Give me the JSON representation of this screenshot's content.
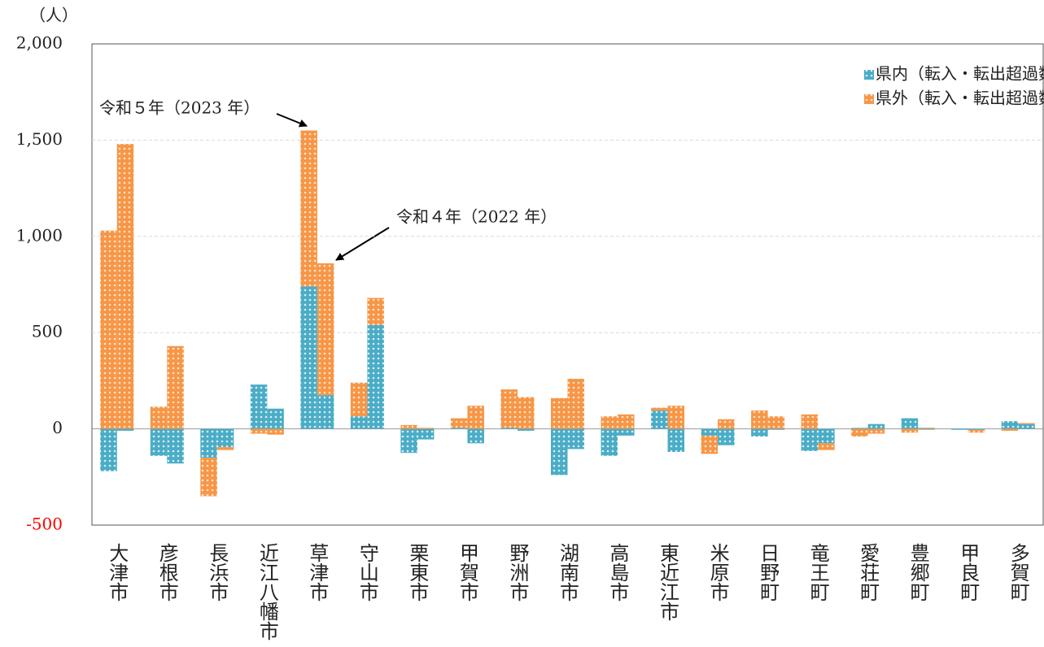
{
  "chart_data": {
    "type": "bar",
    "stacked": true,
    "y_label": "（人）",
    "categories": [
      "大津市",
      "彦根市",
      "長浜市",
      "近江八幡市",
      "草津市",
      "守山市",
      "栗東市",
      "甲賀市",
      "野洲市",
      "湖南市",
      "高島市",
      "東近江市",
      "米原市",
      "日野町",
      "竜王町",
      "愛荘町",
      "豊郷町",
      "甲良町",
      "多賀町"
    ],
    "series": [
      {
        "name": "県内（転入・転出超過数）",
        "color": "#4bacc6",
        "values": [
          [
            -220,
            -10
          ],
          [
            -140,
            -180
          ],
          [
            -150,
            -95
          ],
          [
            230,
            105
          ],
          [
            740,
            175
          ],
          [
            65,
            540
          ],
          [
            -125,
            -55
          ],
          [
            5,
            -75
          ],
          [
            5,
            -10
          ],
          [
            -240,
            -105
          ],
          [
            -140,
            -35
          ],
          [
            95,
            -120
          ],
          [
            -35,
            -85
          ],
          [
            -40,
            -5
          ],
          [
            -115,
            -75
          ],
          [
            5,
            25
          ],
          [
            55,
            5
          ],
          [
            -5,
            -5
          ],
          [
            40,
            25
          ]
        ]
      },
      {
        "name": "県外（転入・転出超過数）",
        "color": "#f79646",
        "values": [
          [
            1030,
            1480
          ],
          [
            115,
            430
          ],
          [
            -200,
            -15
          ],
          [
            -25,
            -30
          ],
          [
            810,
            685
          ],
          [
            175,
            140
          ],
          [
            20,
            5
          ],
          [
            50,
            120
          ],
          [
            200,
            165
          ],
          [
            160,
            260
          ],
          [
            65,
            75
          ],
          [
            15,
            120
          ],
          [
            -95,
            50
          ],
          [
            95,
            65
          ],
          [
            75,
            -35
          ],
          [
            -40,
            -25
          ],
          [
            -20,
            -5
          ],
          [
            0,
            -15
          ],
          [
            -10,
            5
          ]
        ]
      }
    ],
    "annotations": [
      "令和５年（2023 年）",
      "令和４年（2022 年）"
    ],
    "ylim": [
      -500,
      2000
    ],
    "yticks": [
      -500,
      0,
      500,
      {
        "value": 1000,
        "label": "1,000"
      },
      {
        "value": 1500,
        "label": "1,500"
      },
      {
        "value": 2000,
        "label": "2,000"
      }
    ],
    "negative_tick_color": "#ff0000",
    "grid": true,
    "legend": "top-right"
  }
}
